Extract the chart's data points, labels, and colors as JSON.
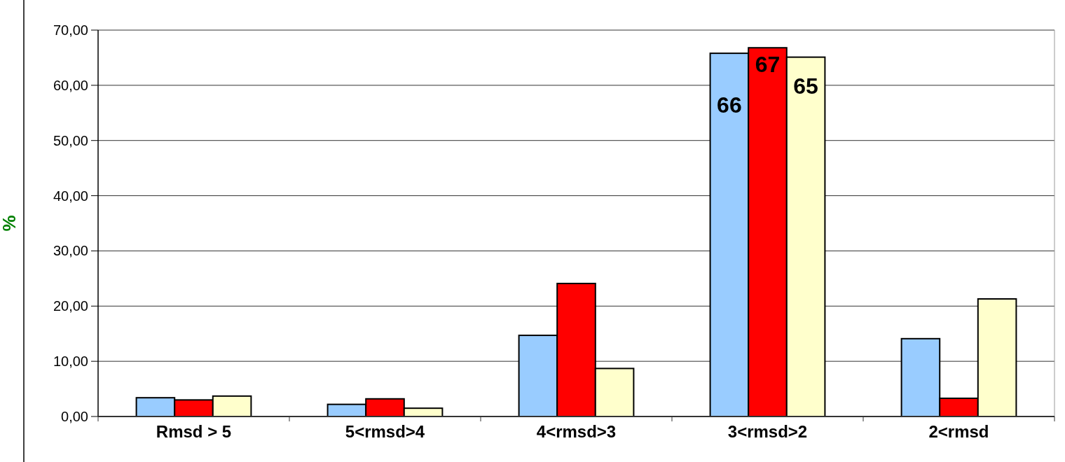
{
  "chart_data": {
    "type": "bar",
    "ylabel": "%",
    "categories": [
      "Rmsd > 5",
      "5<rmsd>4",
      "4<rmsd>3",
      "3<rmsd>2",
      "2<rmsd"
    ],
    "series": [
      {
        "color": "#99ccff",
        "values": [
          3.4,
          2.2,
          14.7,
          65.8,
          14.1
        ],
        "value_labels": [
          null,
          null,
          null,
          "66",
          null
        ]
      },
      {
        "color": "#ff0000",
        "values": [
          3.0,
          3.2,
          24.1,
          66.8,
          3.3
        ],
        "value_labels": [
          null,
          null,
          null,
          "67",
          null
        ]
      },
      {
        "color": "#ffffcc",
        "values": [
          3.7,
          1.5,
          8.7,
          65.1,
          21.3
        ],
        "value_labels": [
          null,
          null,
          null,
          "65",
          null
        ]
      }
    ],
    "ylim": [
      0,
      70
    ],
    "yticks": [
      {
        "value": 0,
        "label": "0,00"
      },
      {
        "value": 10,
        "label": "10,00"
      },
      {
        "value": 20,
        "label": "20,00"
      },
      {
        "value": 30,
        "label": "30,00"
      },
      {
        "value": 40,
        "label": "40,00"
      },
      {
        "value": 50,
        "label": "50,00"
      },
      {
        "value": 60,
        "label": "60,00"
      },
      {
        "value": 70,
        "label": "70,00"
      }
    ],
    "grid": "y"
  }
}
